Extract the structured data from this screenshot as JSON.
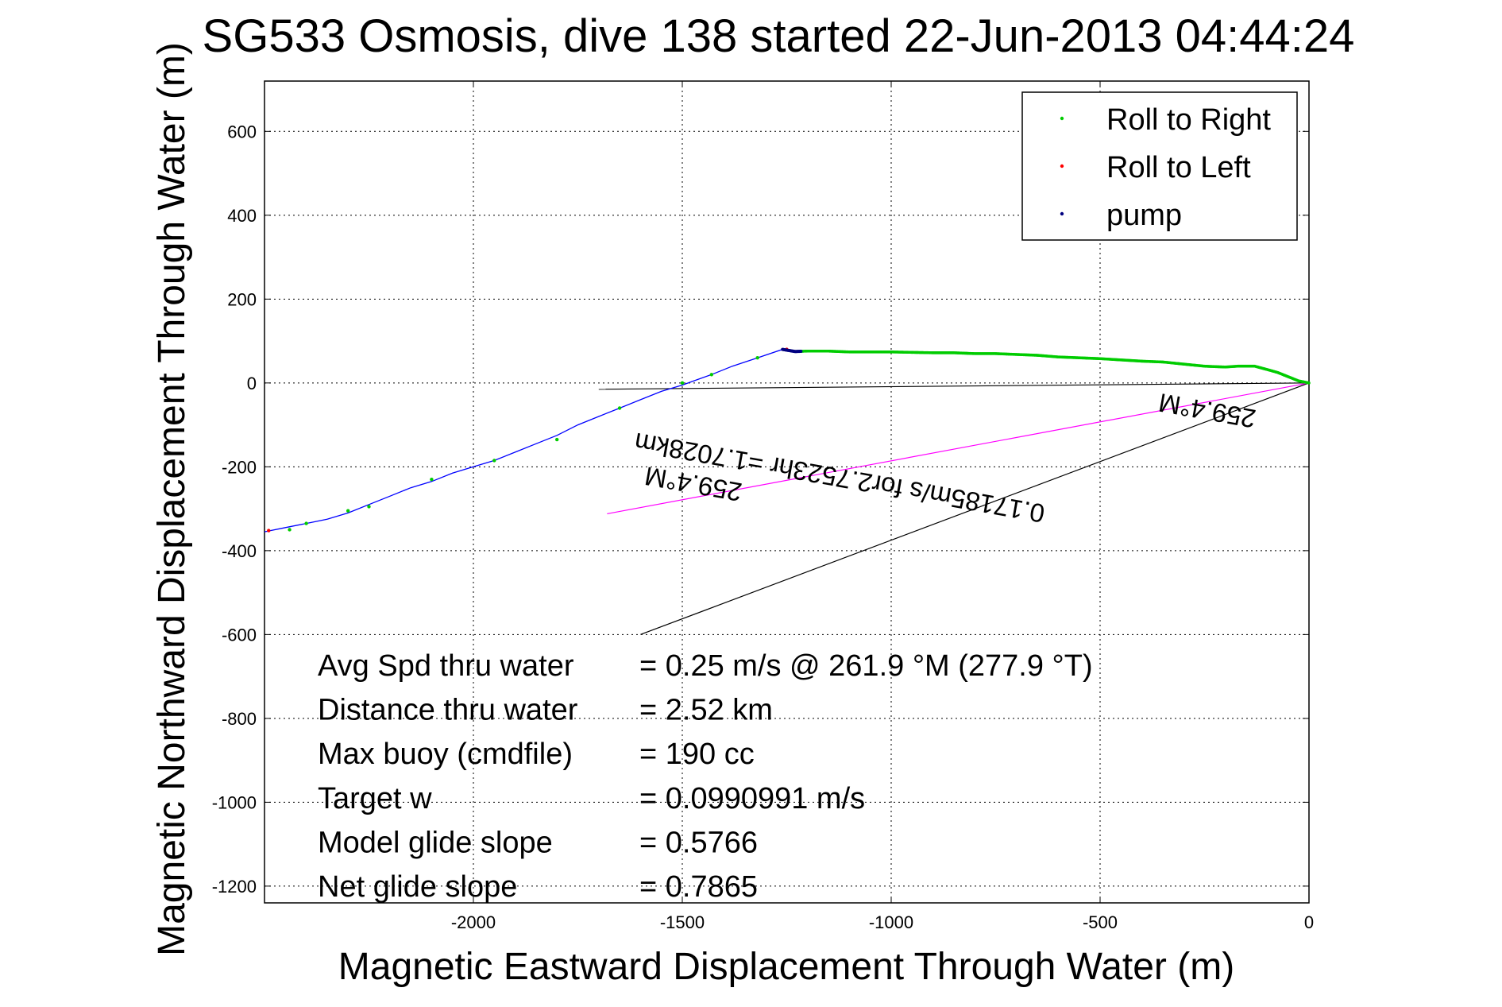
{
  "chart_data": {
    "type": "line",
    "title": "SG533 Osmosis, dive 138 started 22-Jun-2013 04:44:24",
    "xlabel": "Magnetic Eastward Displacement Through Water (m)",
    "ylabel": "Magnetic Northward Displacement Through Water (m)",
    "xlim": [
      -2500,
      0
    ],
    "ylim": [
      -1240,
      720
    ],
    "grid": true,
    "legend_position": "top-right",
    "x_ticks": [
      {
        "value": -2000,
        "label": "-2000"
      },
      {
        "value": -1500,
        "label": "-1500"
      },
      {
        "value": -1000,
        "label": "-1000"
      },
      {
        "value": -500,
        "label": "-500"
      },
      {
        "value": 0,
        "label": "0"
      }
    ],
    "y_ticks": [
      {
        "value": 600,
        "label": "600"
      },
      {
        "value": 400,
        "label": "400"
      },
      {
        "value": 200,
        "label": "200"
      },
      {
        "value": 0,
        "label": "0"
      },
      {
        "value": -200,
        "label": "-200"
      },
      {
        "value": -400,
        "label": "-400"
      },
      {
        "value": -600,
        "label": "-600"
      },
      {
        "value": -800,
        "label": "-800"
      },
      {
        "value": -1000,
        "label": "-1000"
      },
      {
        "value": -1200,
        "label": "-1200"
      }
    ],
    "legend": [
      {
        "name": "Roll to Right",
        "color": "#00cc00"
      },
      {
        "name": "Roll to Left",
        "color": "#ff0000"
      },
      {
        "name": "pump",
        "color": "#000080"
      }
    ],
    "track": {
      "color": "#0000ff",
      "points": [
        [
          0,
          0
        ],
        [
          -25,
          5
        ],
        [
          -50,
          15
        ],
        [
          -75,
          25
        ],
        [
          -100,
          32
        ],
        [
          -130,
          40
        ],
        [
          -170,
          40
        ],
        [
          -200,
          38
        ],
        [
          -250,
          40
        ],
        [
          -300,
          45
        ],
        [
          -350,
          50
        ],
        [
          -400,
          52
        ],
        [
          -450,
          55
        ],
        [
          -500,
          58
        ],
        [
          -550,
          60
        ],
        [
          -600,
          62
        ],
        [
          -650,
          66
        ],
        [
          -700,
          68
        ],
        [
          -750,
          70
        ],
        [
          -800,
          70
        ],
        [
          -850,
          72
        ],
        [
          -900,
          72
        ],
        [
          -950,
          73
        ],
        [
          -1000,
          74
        ],
        [
          -1050,
          74
        ],
        [
          -1100,
          74
        ],
        [
          -1150,
          76
        ],
        [
          -1200,
          76
        ],
        [
          -1230,
          75
        ],
        [
          -1260,
          80
        ],
        [
          -1320,
          60
        ],
        [
          -1380,
          40
        ],
        [
          -1430,
          20
        ],
        [
          -1470,
          6
        ],
        [
          -1500,
          -5
        ],
        [
          -1550,
          -20
        ],
        [
          -1600,
          -40
        ],
        [
          -1650,
          -60
        ],
        [
          -1700,
          -80
        ],
        [
          -1750,
          -100
        ],
        [
          -1800,
          -125
        ],
        [
          -1850,
          -145
        ],
        [
          -1900,
          -165
        ],
        [
          -1950,
          -185
        ],
        [
          -2000,
          -200
        ],
        [
          -2050,
          -215
        ],
        [
          -2100,
          -235
        ],
        [
          -2150,
          -250
        ],
        [
          -2200,
          -270
        ],
        [
          -2250,
          -290
        ],
        [
          -2300,
          -310
        ],
        [
          -2350,
          -325
        ],
        [
          -2400,
          -335
        ],
        [
          -2450,
          -345
        ],
        [
          -2500,
          -355
        ]
      ]
    },
    "roll_to_right": {
      "color": "#00cc00",
      "continuous_segment": {
        "x_start": -1230,
        "x_end": 0
      },
      "points": [
        [
          -1320,
          60
        ],
        [
          -1430,
          20
        ],
        [
          -1500,
          0
        ],
        [
          -1650,
          -60
        ],
        [
          -1800,
          -135
        ],
        [
          -1950,
          -185
        ],
        [
          -2100,
          -230
        ],
        [
          -2250,
          -295
        ],
        [
          -2300,
          -305
        ],
        [
          -2400,
          -335
        ],
        [
          -2440,
          -350
        ]
      ]
    },
    "roll_to_left": {
      "color": "#ff0000",
      "points": [
        [
          -1250,
          80
        ],
        [
          -2490,
          -352
        ]
      ]
    },
    "pump": {
      "color": "#000080",
      "segment": {
        "x_start": -1260,
        "x_end": -1215
      }
    },
    "reference_lines": [
      {
        "color": "#000000",
        "from": [
          0,
          0
        ],
        "to": [
          -1700,
          -15
        ]
      },
      {
        "color": "#000000",
        "from": [
          0,
          0
        ],
        "to": [
          -1600,
          -600
        ]
      },
      {
        "color": "#ff00ff",
        "from": [
          0,
          0
        ],
        "to": [
          -1680,
          -312
        ]
      }
    ],
    "annotations": [
      {
        "text": "0.17185m/s for2.7523hr =1.7028km",
        "anchor": [
          -1120,
          -205
        ],
        "rotation_deg": 190
      },
      {
        "text": "259.4°M",
        "anchor": [
          -240,
          -45
        ],
        "rotation_deg": 190
      },
      {
        "text": "259.4°M",
        "anchor": [
          -1470,
          -220
        ],
        "rotation_deg": 190
      }
    ],
    "stats": [
      {
        "label": "Avg Spd thru water",
        "value": "=  0.25 m/s @ 261.9 °M (277.9 °T)"
      },
      {
        "label": "Distance thru water",
        "value": "=  2.52 km"
      },
      {
        "label": "Max buoy (cmdfile)",
        "value": "= 190 cc"
      },
      {
        "label": "Target w",
        "value": "= 0.0990991 m/s"
      },
      {
        "label": "Model glide slope",
        "value": "= 0.5766"
      },
      {
        "label": "Net glide slope",
        "value": "= 0.7865"
      }
    ]
  }
}
